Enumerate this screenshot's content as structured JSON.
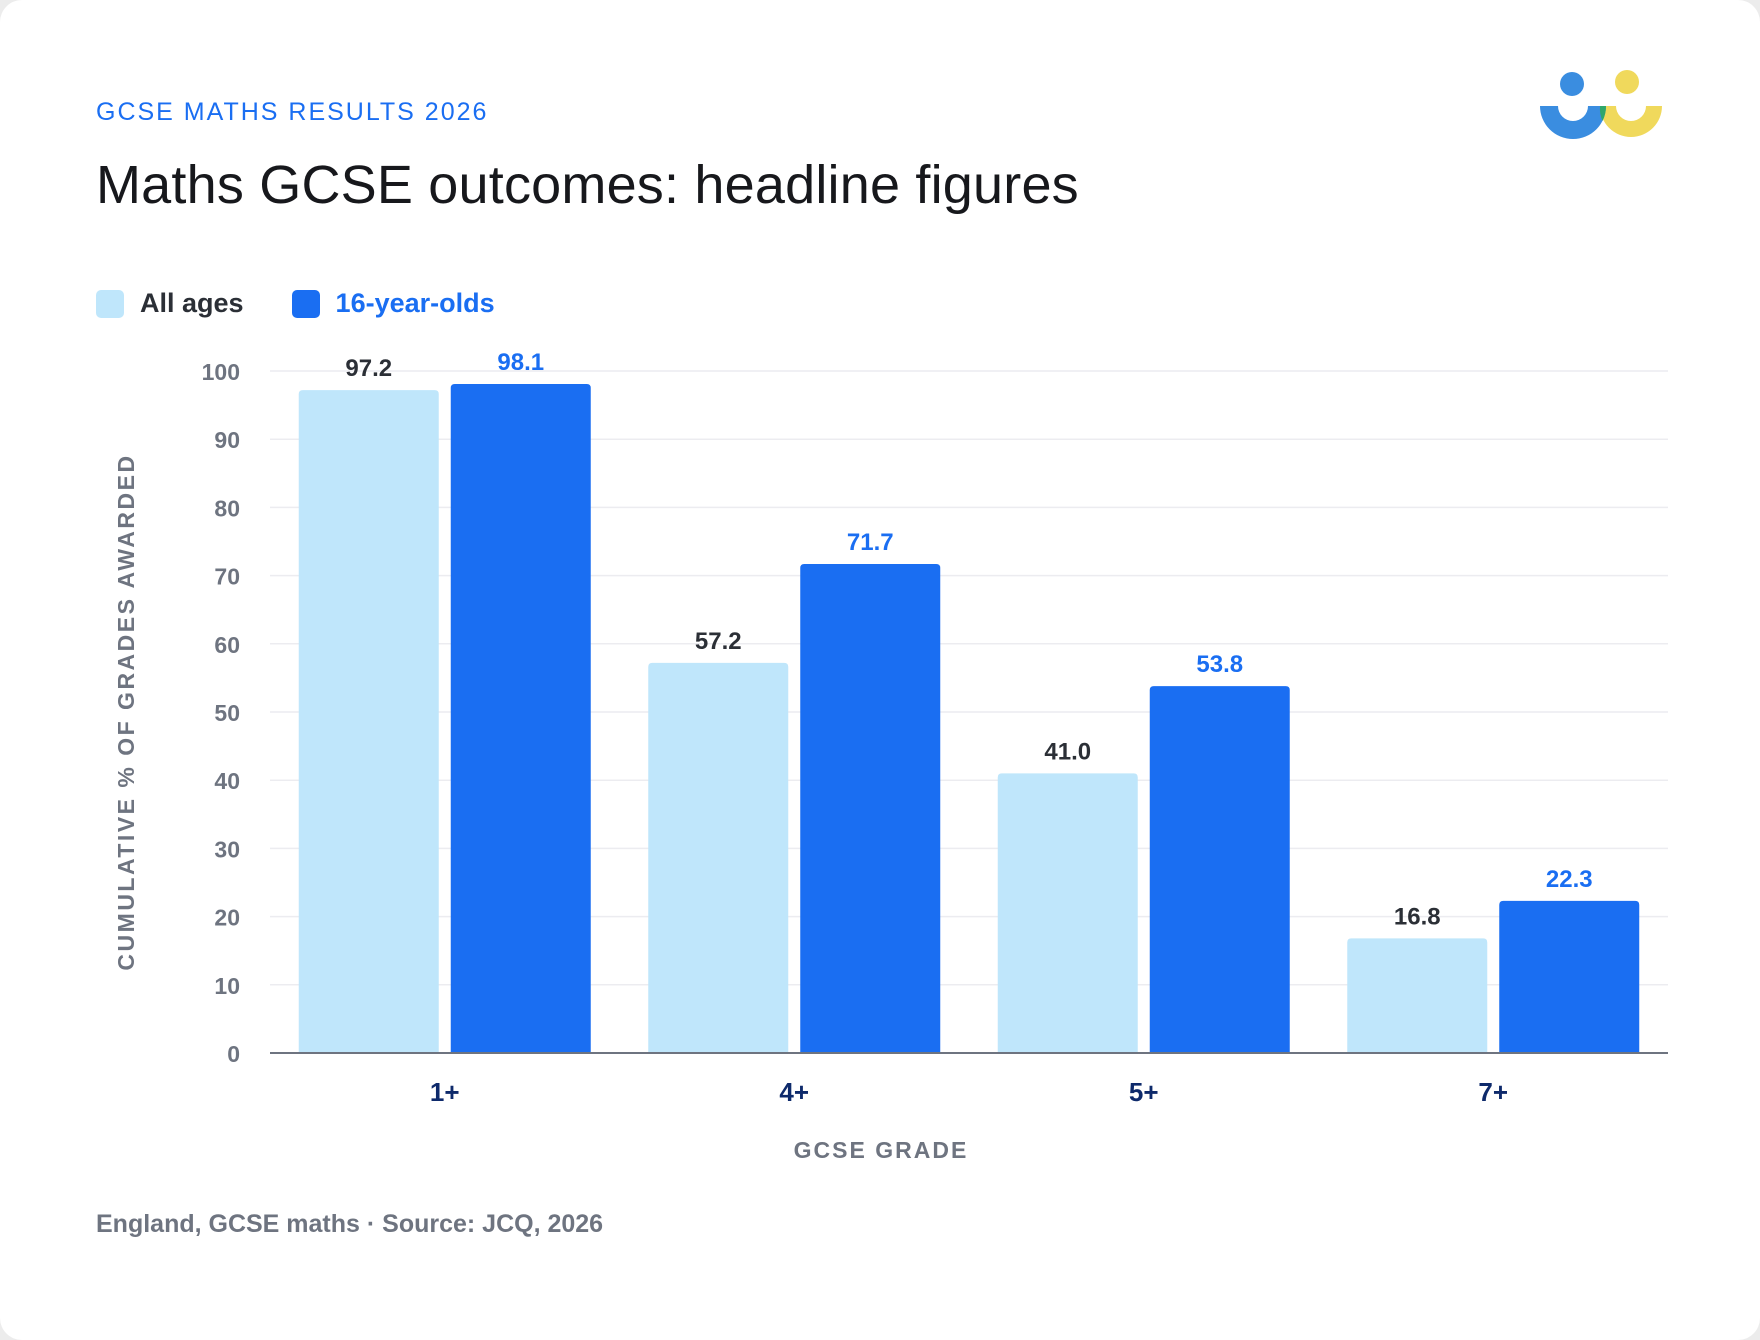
{
  "header": {
    "kicker": "GCSE MATHS RESULTS 2026",
    "title": "Maths GCSE outcomes: headline figures"
  },
  "logo": {
    "icon": "people-logo-icon",
    "colors": [
      "#3a8de0",
      "#2fa66b",
      "#f0d95c"
    ]
  },
  "legend": {
    "items": [
      {
        "label": "All ages",
        "color": "#bfe6fb",
        "text_color": "#2b2f36"
      },
      {
        "label": "16-year-olds",
        "color": "#1a6ef2",
        "text_color": "#1a6ef2"
      }
    ]
  },
  "chart_data": {
    "type": "bar",
    "categories": [
      "1+",
      "4+",
      "5+",
      "7+"
    ],
    "series": [
      {
        "name": "All ages",
        "values": [
          97.2,
          57.2,
          41.0,
          16.8
        ],
        "color": "#bfe6fb",
        "label_color": "#2b2f36"
      },
      {
        "name": "16-year-olds",
        "values": [
          98.1,
          71.7,
          53.8,
          22.3
        ],
        "color": "#1a6ef2",
        "label_color": "#1a6ef2"
      }
    ],
    "value_labels": [
      [
        "97.2",
        "57.2",
        "41.0",
        "16.8"
      ],
      [
        "98.1",
        "71.7",
        "53.8",
        "22.3"
      ]
    ],
    "xlabel": "GCSE GRADE",
    "ylabel": "CUMULATIVE % OF GRADES AWARDED",
    "ylim": [
      0,
      100
    ],
    "yticks": [
      0,
      10,
      20,
      30,
      40,
      50,
      60,
      70,
      80,
      90,
      100
    ],
    "grid": true,
    "legend_position": "top-left"
  },
  "footer": {
    "source": "England, GCSE maths · Source: JCQ, 2026"
  }
}
